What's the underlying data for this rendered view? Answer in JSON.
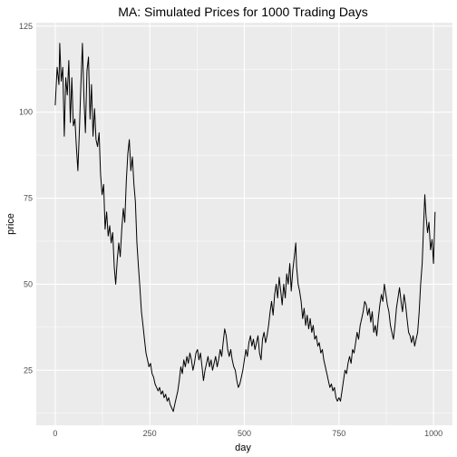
{
  "chart_data": {
    "type": "line",
    "title": "MA: Simulated Prices for 1000 Trading Days",
    "xlabel": "day",
    "ylabel": "price",
    "xlim": [
      -50,
      1050
    ],
    "ylim": [
      9,
      126
    ],
    "xticks": [
      0,
      250,
      500,
      750,
      1000
    ],
    "yticks": [
      25,
      50,
      75,
      100,
      125
    ],
    "grid": true,
    "panel_background": "#ebebeb",
    "grid_color": "#ffffff",
    "line_color": "#000000",
    "series": [
      {
        "points": [
          [
            0,
            102
          ],
          [
            5,
            113
          ],
          [
            10,
            108
          ],
          [
            12,
            120
          ],
          [
            16,
            109
          ],
          [
            20,
            113
          ],
          [
            24,
            93
          ],
          [
            28,
            110
          ],
          [
            32,
            105
          ],
          [
            36,
            115
          ],
          [
            40,
            97
          ],
          [
            44,
            110
          ],
          [
            48,
            96
          ],
          [
            52,
            98
          ],
          [
            56,
            90
          ],
          [
            60,
            83
          ],
          [
            64,
            95
          ],
          [
            68,
            108
          ],
          [
            72,
            120
          ],
          [
            76,
            104
          ],
          [
            80,
            94
          ],
          [
            84,
            112
          ],
          [
            88,
            116
          ],
          [
            92,
            98
          ],
          [
            96,
            108
          ],
          [
            100,
            93
          ],
          [
            104,
            101
          ],
          [
            108,
            92
          ],
          [
            112,
            90
          ],
          [
            116,
            94
          ],
          [
            120,
            82
          ],
          [
            124,
            76
          ],
          [
            128,
            79
          ],
          [
            132,
            66
          ],
          [
            136,
            71
          ],
          [
            140,
            64
          ],
          [
            144,
            67
          ],
          [
            148,
            62
          ],
          [
            152,
            65
          ],
          [
            156,
            55
          ],
          [
            160,
            50
          ],
          [
            164,
            57
          ],
          [
            168,
            62
          ],
          [
            172,
            58
          ],
          [
            176,
            66
          ],
          [
            180,
            72
          ],
          [
            184,
            68
          ],
          [
            188,
            80
          ],
          [
            192,
            88
          ],
          [
            196,
            92
          ],
          [
            200,
            83
          ],
          [
            204,
            87
          ],
          [
            208,
            79
          ],
          [
            212,
            74
          ],
          [
            216,
            62
          ],
          [
            220,
            55
          ],
          [
            224,
            49
          ],
          [
            228,
            42
          ],
          [
            232,
            38
          ],
          [
            236,
            34
          ],
          [
            240,
            30
          ],
          [
            244,
            28
          ],
          [
            248,
            26
          ],
          [
            252,
            27
          ],
          [
            256,
            24
          ],
          [
            260,
            23
          ],
          [
            264,
            21
          ],
          [
            268,
            20
          ],
          [
            272,
            19
          ],
          [
            276,
            20
          ],
          [
            280,
            18
          ],
          [
            284,
            19
          ],
          [
            288,
            17
          ],
          [
            292,
            18
          ],
          [
            296,
            16
          ],
          [
            300,
            17
          ],
          [
            304,
            15
          ],
          [
            308,
            14
          ],
          [
            312,
            13
          ],
          [
            316,
            15
          ],
          [
            320,
            17
          ],
          [
            324,
            19
          ],
          [
            328,
            22
          ],
          [
            332,
            26
          ],
          [
            336,
            24
          ],
          [
            340,
            28
          ],
          [
            344,
            26
          ],
          [
            348,
            29
          ],
          [
            352,
            27
          ],
          [
            356,
            30
          ],
          [
            360,
            28
          ],
          [
            364,
            25
          ],
          [
            368,
            27
          ],
          [
            372,
            30
          ],
          [
            376,
            31
          ],
          [
            380,
            28
          ],
          [
            384,
            30
          ],
          [
            388,
            26
          ],
          [
            392,
            22
          ],
          [
            396,
            25
          ],
          [
            400,
            27
          ],
          [
            404,
            29
          ],
          [
            408,
            26
          ],
          [
            412,
            28
          ],
          [
            416,
            25
          ],
          [
            420,
            27
          ],
          [
            424,
            29
          ],
          [
            428,
            26
          ],
          [
            432,
            28
          ],
          [
            436,
            31
          ],
          [
            440,
            29
          ],
          [
            444,
            33
          ],
          [
            448,
            37
          ],
          [
            452,
            35
          ],
          [
            456,
            31
          ],
          [
            460,
            29
          ],
          [
            464,
            31
          ],
          [
            468,
            28
          ],
          [
            472,
            26
          ],
          [
            476,
            25
          ],
          [
            480,
            22
          ],
          [
            484,
            20
          ],
          [
            488,
            21
          ],
          [
            492,
            23
          ],
          [
            496,
            25
          ],
          [
            500,
            28
          ],
          [
            504,
            31
          ],
          [
            508,
            29
          ],
          [
            512,
            33
          ],
          [
            516,
            35
          ],
          [
            520,
            32
          ],
          [
            524,
            34
          ],
          [
            528,
            31
          ],
          [
            532,
            33
          ],
          [
            536,
            35
          ],
          [
            540,
            30
          ],
          [
            544,
            28
          ],
          [
            548,
            34
          ],
          [
            552,
            36
          ],
          [
            556,
            33
          ],
          [
            560,
            35
          ],
          [
            564,
            38
          ],
          [
            568,
            42
          ],
          [
            572,
            45
          ],
          [
            576,
            41
          ],
          [
            580,
            47
          ],
          [
            584,
            50
          ],
          [
            588,
            46
          ],
          [
            592,
            52
          ],
          [
            596,
            48
          ],
          [
            600,
            44
          ],
          [
            604,
            50
          ],
          [
            608,
            46
          ],
          [
            612,
            53
          ],
          [
            616,
            50
          ],
          [
            620,
            56
          ],
          [
            624,
            48
          ],
          [
            628,
            54
          ],
          [
            632,
            58
          ],
          [
            636,
            62
          ],
          [
            638,
            55
          ],
          [
            642,
            50
          ],
          [
            646,
            48
          ],
          [
            650,
            45
          ],
          [
            654,
            40
          ],
          [
            658,
            43
          ],
          [
            662,
            38
          ],
          [
            666,
            41
          ],
          [
            670,
            37
          ],
          [
            674,
            40
          ],
          [
            678,
            36
          ],
          [
            682,
            38
          ],
          [
            686,
            34
          ],
          [
            690,
            35
          ],
          [
            694,
            32
          ],
          [
            698,
            33
          ],
          [
            702,
            30
          ],
          [
            706,
            31
          ],
          [
            710,
            28
          ],
          [
            714,
            26
          ],
          [
            718,
            24
          ],
          [
            722,
            22
          ],
          [
            726,
            20
          ],
          [
            730,
            21
          ],
          [
            734,
            19
          ],
          [
            738,
            20
          ],
          [
            742,
            17
          ],
          [
            746,
            16
          ],
          [
            750,
            17
          ],
          [
            754,
            16
          ],
          [
            758,
            19
          ],
          [
            762,
            22
          ],
          [
            766,
            25
          ],
          [
            770,
            24
          ],
          [
            774,
            27
          ],
          [
            778,
            29
          ],
          [
            782,
            27
          ],
          [
            786,
            31
          ],
          [
            790,
            30
          ],
          [
            794,
            33
          ],
          [
            798,
            36
          ],
          [
            802,
            34
          ],
          [
            806,
            38
          ],
          [
            810,
            40
          ],
          [
            814,
            42
          ],
          [
            818,
            45
          ],
          [
            822,
            44
          ],
          [
            826,
            41
          ],
          [
            830,
            43
          ],
          [
            834,
            39
          ],
          [
            838,
            42
          ],
          [
            842,
            36
          ],
          [
            846,
            38
          ],
          [
            850,
            35
          ],
          [
            854,
            40
          ],
          [
            858,
            44
          ],
          [
            862,
            47
          ],
          [
            866,
            45
          ],
          [
            870,
            50
          ],
          [
            874,
            47
          ],
          [
            878,
            44
          ],
          [
            882,
            42
          ],
          [
            886,
            38
          ],
          [
            890,
            36
          ],
          [
            894,
            34
          ],
          [
            898,
            38
          ],
          [
            902,
            43
          ],
          [
            906,
            46
          ],
          [
            910,
            49
          ],
          [
            914,
            45
          ],
          [
            918,
            42
          ],
          [
            922,
            47
          ],
          [
            926,
            44
          ],
          [
            930,
            40
          ],
          [
            934,
            36
          ],
          [
            938,
            35
          ],
          [
            942,
            33
          ],
          [
            946,
            35
          ],
          [
            950,
            32
          ],
          [
            954,
            34
          ],
          [
            958,
            36
          ],
          [
            962,
            42
          ],
          [
            966,
            50
          ],
          [
            970,
            56
          ],
          [
            974,
            68
          ],
          [
            977,
            76
          ],
          [
            980,
            70
          ],
          [
            984,
            65
          ],
          [
            988,
            68
          ],
          [
            992,
            60
          ],
          [
            996,
            63
          ],
          [
            1000,
            56
          ],
          [
            1004,
            71
          ]
        ]
      }
    ]
  }
}
